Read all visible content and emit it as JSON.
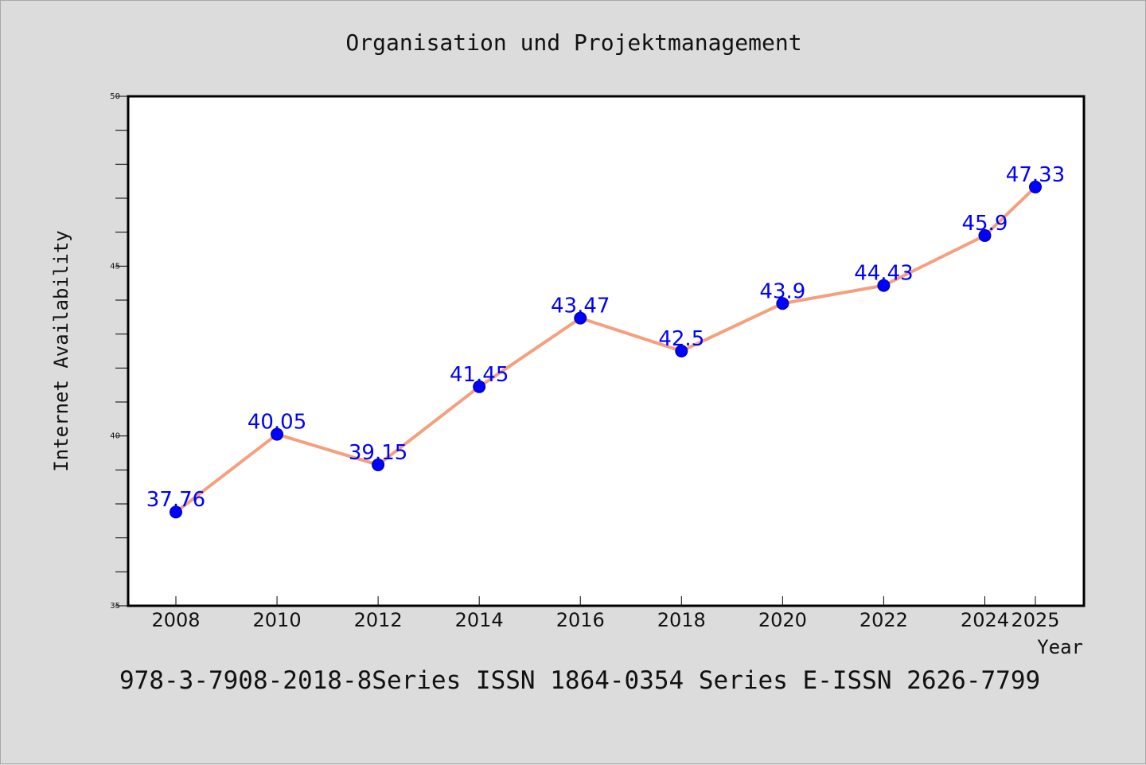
{
  "chart_data": {
    "type": "line",
    "title": "Organisation und Projektmanagement",
    "xlabel": "Year",
    "ylabel": "Internet Availability",
    "x": [
      "2008",
      "2010",
      "2012",
      "2014",
      "2016",
      "2018",
      "2020",
      "2022",
      "2024",
      "2025"
    ],
    "series": [
      {
        "values": [
          37.76,
          40.05,
          39.15,
          41.45,
          43.47,
          42.5,
          43.9,
          44.43,
          45.9,
          47.33
        ],
        "labels": [
          "37.76",
          "40.05",
          "39.15",
          "41.45",
          "43.47",
          "42.5",
          "43.9",
          "44.43",
          "45.9",
          "47.33"
        ],
        "line_color": "#f4a07e",
        "marker_color": "#0000ff"
      }
    ],
    "ylim": [
      35,
      50
    ],
    "yticks": [
      "35",
      "40",
      "45",
      "50"
    ],
    "grid": false,
    "footer": "978-3-7908-2018-8Series ISSN 1864-0354 Series E-ISSN 2626-7799"
  }
}
